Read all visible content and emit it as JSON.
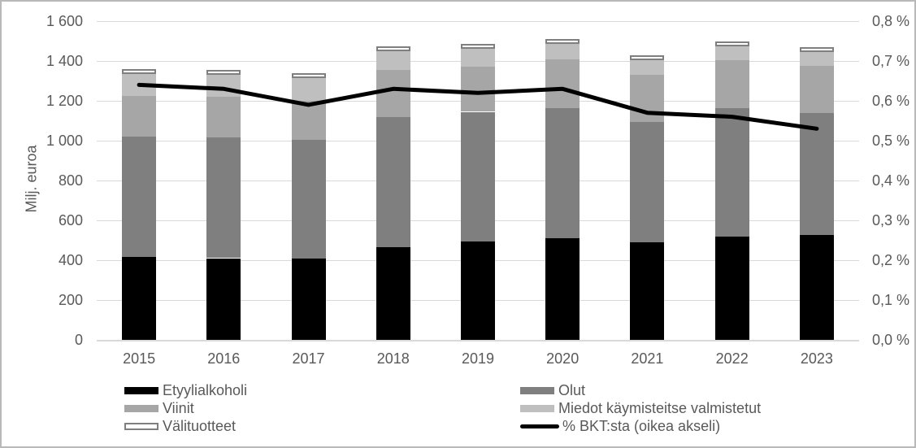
{
  "chart_data": {
    "type": "bar",
    "subtype": "stacked-bars-with-line-overlay",
    "categories": [
      "2015",
      "2016",
      "2017",
      "2018",
      "2019",
      "2020",
      "2021",
      "2022",
      "2023"
    ],
    "series": [
      {
        "name": "Etyylialkoholi",
        "color": "#000000",
        "values": [
          415,
          410,
          410,
          465,
          495,
          510,
          490,
          520,
          525
        ]
      },
      {
        "name": "Olut",
        "color": "#7f7f7f",
        "values": [
          605,
          605,
          595,
          655,
          650,
          655,
          605,
          645,
          615
        ]
      },
      {
        "name": "Viinit",
        "color": "#a6a6a6",
        "values": [
          205,
          205,
          195,
          235,
          225,
          245,
          235,
          240,
          235
        ]
      },
      {
        "name": "Miedot käymisteitse valmistetut",
        "color": "#bfbfbf",
        "values": [
          110,
          110,
          115,
          95,
          90,
          75,
          75,
          70,
          70
        ]
      },
      {
        "name": "Välituotteet",
        "color": "#ffffff",
        "border_color": "#7f7f7f",
        "values": [
          20,
          20,
          20,
          20,
          20,
          20,
          20,
          20,
          20
        ]
      }
    ],
    "bar_totals": [
      1355,
      1350,
      1335,
      1470,
      1480,
      1505,
      1425,
      1495,
      1465
    ],
    "line_series": {
      "name": "% BKT:sta (oikea akseli)",
      "color": "#000000",
      "values": [
        0.64,
        0.63,
        0.59,
        0.63,
        0.62,
        0.63,
        0.57,
        0.56,
        0.53
      ]
    },
    "left_axis": {
      "title": "Milj. euroa",
      "min": 0,
      "max": 1600,
      "step": 200,
      "tick_labels": [
        "0",
        "200",
        "400",
        "600",
        "800",
        "1 000",
        "1 200",
        "1 400",
        "1 600"
      ]
    },
    "right_axis": {
      "min": 0,
      "max": 0.8,
      "step": 0.1,
      "tick_labels": [
        "0,0 %",
        "0,1 %",
        "0,2 %",
        "0,3 %",
        "0,4 %",
        "0,5 %",
        "0,6 %",
        "0,7 %",
        "0,8 %"
      ]
    },
    "grid": true,
    "legend_position": "bottom-two-columns",
    "colors": {
      "gridline": "#d9d9d9",
      "axis_line": "#d9d9d9",
      "axis_text": "#595959",
      "frame_border": "#b9b9b9",
      "background": "#ffffff"
    }
  },
  "legend": {
    "columns": [
      [
        {
          "label": "Etyylialkoholi",
          "swatch": "rect",
          "color": "#000000"
        },
        {
          "label": "Viinit",
          "swatch": "rect",
          "color": "#a6a6a6"
        },
        {
          "label": "Välituotteet",
          "swatch": "rect-outline",
          "color": "#ffffff",
          "border": "#7f7f7f"
        }
      ],
      [
        {
          "label": "Olut",
          "swatch": "rect",
          "color": "#7f7f7f"
        },
        {
          "label": "Miedot käymisteitse valmistetut",
          "swatch": "rect",
          "color": "#bfbfbf"
        },
        {
          "label": "% BKT:sta (oikea akseli)",
          "swatch": "line",
          "color": "#000000"
        }
      ]
    ]
  }
}
